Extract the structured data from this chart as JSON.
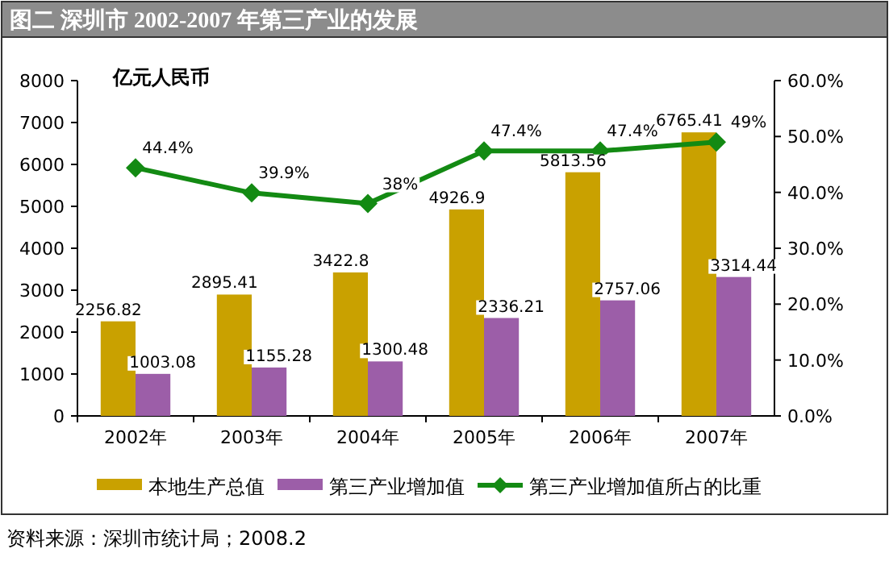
{
  "chart_data": {
    "type": "bar",
    "title": "图二 深圳市 2002-2007 年第三产业的发展",
    "ylabel": "亿元人民币",
    "categories": [
      "2002年",
      "2003年",
      "2004年",
      "2005年",
      "2006年",
      "2007年"
    ],
    "series": [
      {
        "name": "本地生产总值",
        "type": "bar",
        "color": "#c9a100",
        "values": [
          2256.82,
          2895.41,
          3422.8,
          4926.9,
          5813.56,
          6765.41
        ],
        "value_labels": [
          "2256.82",
          "2895.41",
          "3422.8",
          "4926.9",
          "5813.56",
          "6765.41"
        ]
      },
      {
        "name": "第三产业增加值",
        "type": "bar",
        "color": "#9c5ea8",
        "values": [
          1003.08,
          1155.28,
          1300.48,
          2336.21,
          2757.06,
          3314.44
        ],
        "value_labels": [
          "1003.08",
          "1155.28",
          "1300.48",
          "2336.21",
          "2757.06",
          "3314.44"
        ]
      },
      {
        "name": "第三产业增加值所占的比重",
        "type": "line",
        "axis": "y2",
        "color": "#138a13",
        "values": [
          44.4,
          39.9,
          38,
          47.4,
          47.4,
          49
        ],
        "value_labels": [
          "44.4%",
          "39.9%",
          "38%",
          "47.4%",
          "47.4%",
          "49%"
        ]
      }
    ],
    "ylim": [
      0,
      8000
    ],
    "yticks": [
      0,
      1000,
      2000,
      3000,
      4000,
      5000,
      6000,
      7000,
      8000
    ],
    "y2lim": [
      0,
      60
    ],
    "y2ticks": [
      {
        "value": 0,
        "label": "0.0%"
      },
      {
        "value": 10,
        "label": "10.0%"
      },
      {
        "value": 20,
        "label": "20.0%"
      },
      {
        "value": 30,
        "label": "30.0%"
      },
      {
        "value": 40,
        "label": "40.0%"
      },
      {
        "value": 50,
        "label": "50.0%"
      },
      {
        "value": 60,
        "label": "60.0%"
      }
    ],
    "marker": "diamond",
    "legend": "bottom",
    "grid": false,
    "annotations": [
      "资料来源：深圳市统计局；2008.2"
    ]
  }
}
